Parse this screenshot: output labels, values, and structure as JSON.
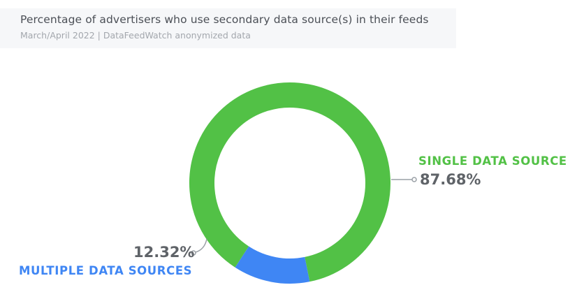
{
  "header": {
    "title": "Percentage of advertisers who use secondary data source(s) in their feeds",
    "subtitle": "March/April 2022 | DataFeedWatch anonymized data"
  },
  "chart_data": {
    "type": "pie",
    "style": "donut",
    "title": "Percentage of advertisers who use secondary data source(s) in their feeds",
    "subtitle": "March/April 2022 | DataFeedWatch anonymized data",
    "slices": [
      {
        "label": "SINGLE DATA SOURCE",
        "value": 87.68,
        "value_label": "87.68%",
        "color": "#52c146"
      },
      {
        "label": "MULTIPLE DATA SOURCES",
        "value": 12.32,
        "value_label": "12.32%",
        "color": "#3f86f4"
      }
    ],
    "legend": "none",
    "label_placement": "outside with leader lines"
  }
}
